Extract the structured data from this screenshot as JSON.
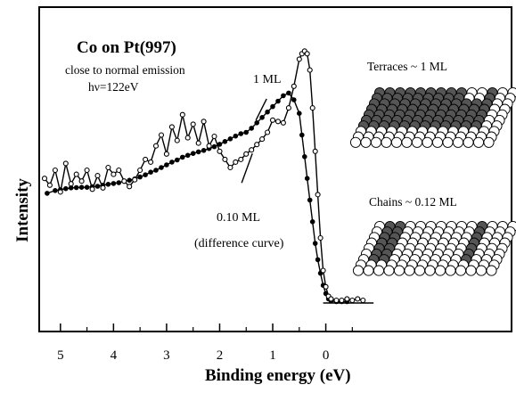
{
  "chart_data": {
    "type": "line",
    "title": "Co on Pt(997)",
    "subtitle_lines": [
      "close to normal emission",
      "hν=122eV"
    ],
    "xlabel": "Binding energy (eV)",
    "ylabel": "Intensity",
    "x_ticks": [
      "5",
      "4",
      "3",
      "2",
      "1",
      "0"
    ],
    "xlim": [
      5.4,
      -3.5
    ],
    "ylim": [
      0,
      100
    ],
    "x_reversed": true,
    "grid": false,
    "series": [
      {
        "name": "1 ML",
        "marker": "filled-circle",
        "x": [
          5.25,
          5.1,
          5.0,
          4.9,
          4.8,
          4.7,
          4.6,
          4.5,
          4.4,
          4.3,
          4.2,
          4.1,
          4.0,
          3.9,
          3.8,
          3.7,
          3.6,
          3.5,
          3.4,
          3.3,
          3.2,
          3.1,
          3.0,
          2.9,
          2.8,
          2.7,
          2.6,
          2.5,
          2.4,
          2.3,
          2.2,
          2.1,
          2.0,
          1.9,
          1.8,
          1.7,
          1.6,
          1.5,
          1.4,
          1.3,
          1.2,
          1.1,
          1.0,
          0.9,
          0.8,
          0.7,
          0.6,
          0.5,
          0.45,
          0.4,
          0.35,
          0.3,
          0.25,
          0.2,
          0.15,
          0.1,
          0.05,
          0.0,
          -0.05,
          -0.1,
          -0.2,
          -0.3,
          -0.4
        ],
        "y": [
          40.5,
          41.5,
          41.8,
          42.2,
          42.5,
          42.6,
          42.7,
          42.7,
          42.9,
          43.1,
          43.5,
          43.8,
          44.1,
          44.4,
          44.9,
          45.3,
          45.8,
          46.5,
          47.3,
          48.3,
          49.0,
          50.0,
          51.0,
          52.0,
          52.8,
          53.8,
          54.5,
          55.2,
          55.8,
          56.3,
          57.0,
          57.7,
          58.6,
          59.6,
          60.6,
          61.6,
          62.5,
          63.0,
          64.5,
          66.5,
          68.5,
          70.5,
          72.5,
          74.5,
          76.5,
          77.5,
          75.0,
          70.0,
          62.0,
          54.0,
          46.0,
          38.0,
          30.0,
          22.0,
          16.0,
          11.0,
          6.5,
          3.5,
          1.5,
          0.8,
          0.5,
          0.5,
          0.5
        ]
      },
      {
        "name": "0.10 ML (difference curve)",
        "marker": "open-circle",
        "x": [
          5.3,
          5.2,
          5.1,
          5.0,
          4.9,
          4.8,
          4.7,
          4.6,
          4.5,
          4.4,
          4.3,
          4.2,
          4.1,
          4.0,
          3.9,
          3.8,
          3.7,
          3.6,
          3.5,
          3.4,
          3.3,
          3.2,
          3.1,
          3.0,
          2.9,
          2.8,
          2.7,
          2.6,
          2.5,
          2.4,
          2.3,
          2.2,
          2.1,
          2.0,
          1.9,
          1.8,
          1.7,
          1.6,
          1.5,
          1.4,
          1.3,
          1.2,
          1.1,
          1.0,
          0.9,
          0.8,
          0.7,
          0.6,
          0.5,
          0.45,
          0.4,
          0.35,
          0.3,
          0.25,
          0.2,
          0.15,
          0.1,
          0.05,
          0.0,
          -0.05,
          -0.1,
          -0.2,
          -0.3,
          -0.4,
          -0.5,
          -0.6,
          -0.7
        ],
        "y": [
          46.0,
          43.5,
          49.0,
          41.0,
          51.5,
          44.0,
          47.5,
          45.0,
          49.0,
          42.0,
          47.0,
          42.5,
          50.0,
          47.5,
          49.0,
          45.0,
          43.0,
          45.5,
          49.0,
          53.0,
          52.0,
          58.0,
          62.0,
          55.0,
          65.0,
          60.0,
          69.5,
          61.0,
          66.0,
          59.0,
          67.0,
          58.0,
          61.5,
          56.0,
          53.0,
          50.0,
          52.0,
          53.0,
          55.0,
          56.5,
          58.5,
          60.5,
          63.0,
          67.5,
          67.0,
          66.5,
          72.0,
          80.0,
          90.0,
          92.0,
          93.0,
          92.0,
          86.0,
          72.0,
          56.0,
          40.0,
          24.0,
          12.0,
          6.0,
          2.5,
          1.5,
          1.0,
          1.0,
          1.5,
          1.0,
          1.5,
          1.0
        ]
      }
    ],
    "annotations": [
      {
        "text": "1 ML",
        "target_series": 0,
        "target_x": 1.35
      },
      {
        "text": "0.10 ML",
        "target_series": 1,
        "target_x": 1.35
      },
      {
        "text": "(difference curve)"
      }
    ],
    "insets": [
      {
        "label": "Terraces ~ 1 ML"
      },
      {
        "label": "Chains ~ 0.12 ML"
      }
    ],
    "colors": {
      "ink": "#000000",
      "atom_white": "#ffffff",
      "atom_dark": "#555555"
    }
  }
}
